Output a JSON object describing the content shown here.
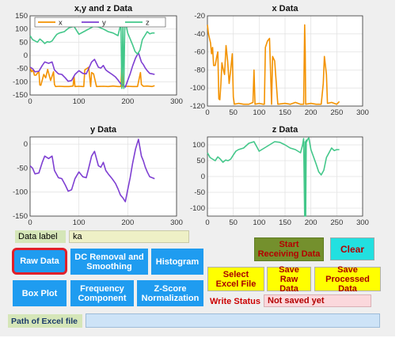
{
  "colors": {
    "x": "#f39200",
    "y": "#7e3fd2",
    "z": "#43c78a",
    "blue_button": "#1f9cf0",
    "yellow_button": "#ffff00",
    "green_button": "#74902d",
    "cyan_button": "#22e0e0",
    "selected_outline": "#e0202a"
  },
  "controls": {
    "data_label": {
      "label": "Data label",
      "value": "ka"
    },
    "buttons": {
      "raw_data": "Raw Data",
      "dc_removal": "DC Removal and Smoothing",
      "histogram": "Histogram",
      "box_plot": "Box Plot",
      "frequency": "Frequency Component",
      "zscore": "Z-Score Normalization",
      "start_receiving": "Start Receiving Data",
      "clear": "Clear",
      "select_excel": "Select Excel File",
      "save_raw": "Save Raw Data",
      "save_processed": "Save Processed Data"
    },
    "write_status": {
      "label": "Write Status",
      "value": "Not saved yet"
    },
    "excel_path": {
      "label": "Path of Excel file",
      "value": ""
    }
  },
  "chart_data": [
    {
      "id": "xyz",
      "type": "line",
      "title": "x,y and z Data",
      "xlim": [
        0,
        300
      ],
      "ylim": [
        -150,
        150
      ],
      "xticks": [
        0,
        100,
        200,
        300
      ],
      "yticks": [
        -150,
        -100,
        -50,
        0,
        50,
        100,
        150
      ],
      "legend": {
        "placement": "top",
        "entries": [
          "x",
          "y",
          "z"
        ]
      },
      "series": [
        {
          "name": "x",
          "color": "#f39200",
          "x": [
            0,
            3,
            6,
            9,
            12,
            18,
            20,
            22,
            28,
            32,
            36,
            42,
            48,
            50,
            52,
            60,
            70,
            80,
            88,
            90,
            92,
            100,
            108,
            110,
            112,
            120,
            124,
            126,
            130,
            136,
            150,
            160,
            170,
            180,
            186,
            188,
            190,
            200,
            210,
            220,
            226,
            228,
            232,
            240,
            250,
            255
          ],
          "y": [
            -45,
            -62,
            -55,
            -75,
            -75,
            -60,
            -112,
            -113,
            -72,
            -85,
            -53,
            -95,
            -62,
            -110,
            -118,
            -117,
            -118,
            -118,
            -116,
            -80,
            -118,
            -117,
            -118,
            -118,
            -55,
            -45,
            -118,
            -65,
            -70,
            -118,
            -117,
            -118,
            -116,
            -118,
            -118,
            -30,
            -118,
            -117,
            -118,
            -118,
            -65,
            -110,
            -117,
            -116,
            -118,
            -115
          ]
        },
        {
          "name": "y",
          "color": "#7e3fd2",
          "x": [
            0,
            5,
            10,
            18,
            25,
            30,
            38,
            45,
            50,
            58,
            65,
            72,
            78,
            85,
            92,
            100,
            108,
            115,
            120,
            126,
            132,
            140,
            145,
            150,
            155,
            160,
            168,
            175,
            180,
            185,
            190,
            195,
            200,
            205,
            210,
            216,
            222,
            228,
            232,
            236,
            240,
            245,
            250,
            255
          ],
          "y": [
            -45,
            -50,
            -62,
            -60,
            -38,
            -25,
            -30,
            -25,
            -55,
            -70,
            -72,
            -85,
            -98,
            -95,
            -72,
            -58,
            -68,
            -70,
            -50,
            -25,
            -15,
            -45,
            -48,
            -38,
            -55,
            -62,
            -72,
            -82,
            -93,
            -106,
            -112,
            -120,
            -95,
            -70,
            -40,
            -10,
            10,
            -25,
            -35,
            -48,
            -58,
            -68,
            -70,
            -72
          ]
        },
        {
          "name": "z",
          "color": "#43c78a",
          "x": [
            0,
            5,
            10,
            15,
            20,
            25,
            30,
            35,
            40,
            45,
            50,
            55,
            60,
            70,
            80,
            90,
            95,
            100,
            110,
            120,
            130,
            140,
            150,
            160,
            170,
            180,
            186,
            188,
            190,
            192,
            194,
            196,
            200,
            210,
            215,
            220,
            225,
            230,
            240,
            245,
            250,
            255
          ],
          "y": [
            75,
            60,
            55,
            50,
            62,
            55,
            45,
            52,
            50,
            55,
            68,
            80,
            85,
            90,
            105,
            110,
            95,
            80,
            90,
            100,
            110,
            108,
            100,
            90,
            85,
            75,
            120,
            -125,
            110,
            -125,
            110,
            118,
            85,
            40,
            15,
            5,
            20,
            60,
            90,
            82,
            85,
            85
          ]
        }
      ]
    },
    {
      "id": "x",
      "type": "line",
      "title": "x Data",
      "xlim": [
        0,
        300
      ],
      "ylim": [
        -120,
        -20
      ],
      "xticks": [
        0,
        50,
        100,
        150,
        200,
        250,
        300
      ],
      "yticks": [
        -120,
        -100,
        -80,
        -60,
        -40,
        -20
      ],
      "series": [
        {
          "name": "x",
          "color": "#f39200",
          "x": [
            0,
            2,
            4,
            6,
            8,
            10,
            12,
            15,
            18,
            20,
            22,
            24,
            26,
            28,
            30,
            33,
            36,
            39,
            42,
            45,
            48,
            50,
            52,
            60,
            70,
            80,
            88,
            90,
            92,
            100,
            108,
            110,
            112,
            116,
            120,
            124,
            126,
            130,
            136,
            150,
            160,
            170,
            180,
            186,
            187,
            188,
            189,
            190,
            200,
            210,
            220,
            224,
            226,
            228,
            230,
            232,
            240,
            250,
            255
          ],
          "y": [
            -30,
            -40,
            -45,
            -50,
            -62,
            -55,
            -75,
            -75,
            -65,
            -60,
            -112,
            -113,
            -95,
            -72,
            -78,
            -85,
            -53,
            -70,
            -95,
            -80,
            -62,
            -110,
            -118,
            -117,
            -118,
            -118,
            -116,
            -80,
            -118,
            -117,
            -118,
            -118,
            -55,
            -48,
            -45,
            -118,
            -65,
            -70,
            -118,
            -117,
            -118,
            -116,
            -118,
            -118,
            -70,
            -30,
            -60,
            -118,
            -117,
            -118,
            -118,
            -95,
            -65,
            -75,
            -85,
            -117,
            -116,
            -118,
            -115
          ]
        }
      ]
    },
    {
      "id": "y",
      "type": "line",
      "title": "y Data",
      "xlim": [
        0,
        300
      ],
      "ylim": [
        -150,
        15
      ],
      "xticks": [
        0,
        100,
        200,
        300
      ],
      "yticks": [
        -150,
        -100,
        -50,
        0
      ],
      "series": [
        {
          "name": "y",
          "color": "#7e3fd2",
          "x": [
            0,
            5,
            10,
            18,
            25,
            30,
            38,
            45,
            50,
            58,
            65,
            72,
            78,
            85,
            92,
            100,
            108,
            115,
            120,
            126,
            132,
            140,
            145,
            150,
            155,
            160,
            168,
            175,
            180,
            185,
            190,
            195,
            200,
            205,
            210,
            216,
            222,
            228,
            232,
            236,
            240,
            245,
            250,
            255
          ],
          "y": [
            -45,
            -50,
            -62,
            -60,
            -38,
            -25,
            -30,
            -25,
            -55,
            -70,
            -72,
            -85,
            -98,
            -95,
            -72,
            -58,
            -68,
            -70,
            -50,
            -25,
            -15,
            -45,
            -48,
            -38,
            -55,
            -62,
            -72,
            -82,
            -93,
            -106,
            -112,
            -120,
            -95,
            -70,
            -40,
            -10,
            10,
            -25,
            -35,
            -48,
            -58,
            -68,
            -70,
            -72
          ]
        }
      ]
    },
    {
      "id": "z",
      "type": "line",
      "title": "z Data",
      "xlim": [
        0,
        300
      ],
      "ylim": [
        -125,
        125
      ],
      "xticks": [
        0,
        50,
        100,
        150,
        200,
        250,
        300
      ],
      "yticks": [
        -100,
        -50,
        0,
        50,
        100
      ],
      "series": [
        {
          "name": "z",
          "color": "#43c78a",
          "x": [
            0,
            5,
            10,
            15,
            20,
            25,
            30,
            35,
            40,
            45,
            50,
            55,
            60,
            70,
            80,
            90,
            95,
            100,
            110,
            120,
            130,
            140,
            150,
            160,
            170,
            180,
            184,
            186,
            188,
            189,
            190,
            191,
            192,
            194,
            196,
            200,
            210,
            215,
            220,
            225,
            230,
            240,
            245,
            250,
            255
          ],
          "y": [
            75,
            60,
            55,
            50,
            62,
            55,
            45,
            52,
            50,
            55,
            68,
            80,
            85,
            90,
            105,
            110,
            95,
            80,
            90,
            100,
            110,
            108,
            100,
            90,
            85,
            75,
            100,
            120,
            -125,
            110,
            -125,
            115,
            110,
            118,
            122,
            85,
            40,
            15,
            5,
            20,
            60,
            90,
            82,
            85,
            85
          ]
        }
      ]
    }
  ]
}
